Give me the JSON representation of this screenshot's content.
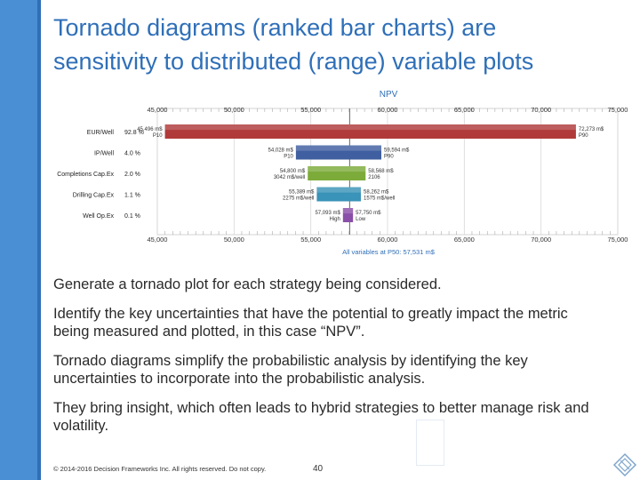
{
  "slide": {
    "title_line1": "Tornado diagrams (ranked bar charts) are",
    "title_line2": "sensitivity to distributed (range) variable plots",
    "bullets": [
      "Generate a tornado plot for each strategy being considered.",
      "Identify the key uncertainties that have the potential to greatly impact the metric being measured and plotted, in this case “NPV”.",
      "Tornado diagrams simplify the probabilistic analysis by identifying the key uncertainties to incorporate into the probabilistic analysis.",
      "They bring insight, which often leads to hybrid strategies to better manage risk and volatility."
    ],
    "footer": "© 2014-2016 Decision Frameworks Inc. All rights reserved. Do not copy.",
    "page_number": "40",
    "logo_icon": "diamond-logo-icon"
  },
  "chart_data": {
    "type": "bar",
    "subtype": "tornado",
    "title": "NPV",
    "footnote": "All variables at P50: 57,531 m$",
    "base_value": 57531,
    "x_ticks": [
      "45,000",
      "50,000",
      "55,000",
      "60,000",
      "65,000",
      "70,000",
      "75,000"
    ],
    "xlim": [
      45000,
      75000
    ],
    "grid": true,
    "bars": [
      {
        "name": "EUR/Well",
        "pct": "92.8 %",
        "low": 45496,
        "high": 72273,
        "low_label1": "45,496 m$",
        "low_label2": "P10",
        "high_label1": "72,273 m$",
        "high_label2": "P90",
        "color": "#b03a3a"
      },
      {
        "name": "IP/Well",
        "pct": "4.0 %",
        "low": 54028,
        "high": 59594,
        "low_label1": "54,028 m$",
        "low_label2": "P10",
        "high_label1": "59,594 m$",
        "high_label2": "P90",
        "color": "#3f5fa0"
      },
      {
        "name": "Completions Cap.Ex",
        "pct": "2.0 %",
        "low": 54800,
        "high": 58568,
        "low_label1": "54,800 m$",
        "low_label2": "3042 m$/well",
        "high_label1": "58,568 m$",
        "high_label2": "2106",
        "color": "#7cab3a"
      },
      {
        "name": "Drilling Cap.Ex",
        "pct": "1.1 %",
        "low": 55389,
        "high": 58262,
        "low_label1": "55,389 m$",
        "low_label2": "2275 m$/well",
        "high_label1": "58,262 m$",
        "high_label2": "1575 m$/well",
        "color": "#3a93b8"
      },
      {
        "name": "Well Op.Ex",
        "pct": "0.1 %",
        "low": 57093,
        "high": 57750,
        "low_label1": "57,093 m$",
        "low_label2": "High",
        "high_label1": "57,750 m$",
        "high_label2": "Low",
        "color": "#8a4fa8"
      }
    ],
    "colors": {
      "axis_title": "#2f6fb8",
      "footnote": "#2f6fb8",
      "grid": "#d8d8d8",
      "base_line": "#666666"
    }
  }
}
